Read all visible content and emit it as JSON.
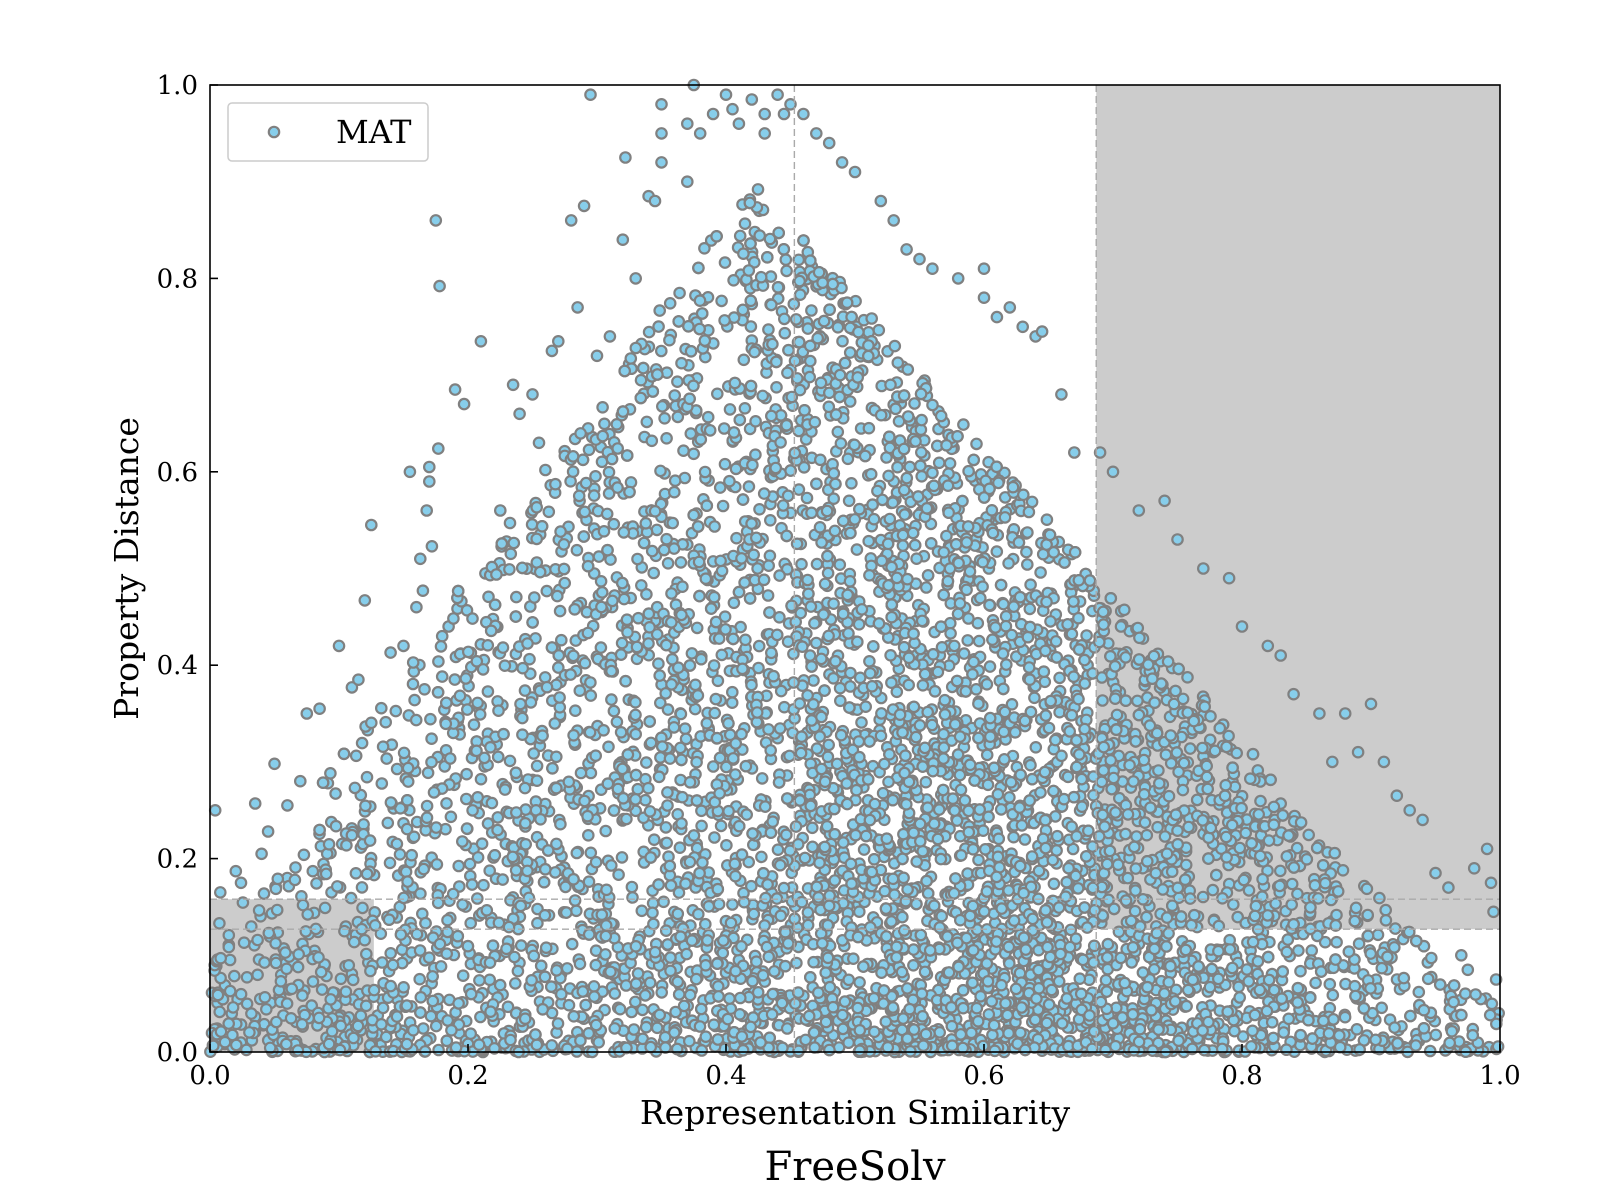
{
  "chart_data": {
    "type": "scatter",
    "title": "",
    "caption": "FreeSolv",
    "xlabel": "Representation Similarity",
    "ylabel": "Property Distance",
    "xlim": [
      0.0,
      1.0
    ],
    "ylim": [
      0.0,
      1.0
    ],
    "xticks": [
      "0.0",
      "0.2",
      "0.4",
      "0.6",
      "0.8",
      "1.0"
    ],
    "yticks": [
      "0.0",
      "0.2",
      "0.4",
      "0.6",
      "0.8",
      "1.0"
    ],
    "grid": false,
    "legend": {
      "placement": "top-left",
      "entries": [
        "MAT"
      ]
    },
    "series": [
      {
        "name": "MAT",
        "marker_fill": "#87CEEB",
        "marker_edge": "#808080",
        "points_note": "dense point cloud; outline points listed, bulk estimated",
        "points": [
          [
            0.004,
            0.25
          ],
          [
            0.008,
            0.165
          ],
          [
            0.02,
            0.187
          ],
          [
            0.024,
            0.175
          ],
          [
            0.035,
            0.257
          ],
          [
            0.04,
            0.205
          ],
          [
            0.045,
            0.228
          ],
          [
            0.05,
            0.298
          ],
          [
            0.06,
            0.255
          ],
          [
            0.07,
            0.28
          ],
          [
            0.075,
            0.35
          ],
          [
            0.085,
            0.355
          ],
          [
            0.1,
            0.42
          ],
          [
            0.11,
            0.377
          ],
          [
            0.115,
            0.385
          ],
          [
            0.12,
            0.467
          ],
          [
            0.125,
            0.545
          ],
          [
            0.14,
            0.413
          ],
          [
            0.15,
            0.42
          ],
          [
            0.155,
            0.6
          ],
          [
            0.16,
            0.46
          ],
          [
            0.163,
            0.51
          ],
          [
            0.165,
            0.477
          ],
          [
            0.168,
            0.56
          ],
          [
            0.17,
            0.605
          ],
          [
            0.17,
            0.59
          ],
          [
            0.172,
            0.523
          ],
          [
            0.175,
            0.86
          ],
          [
            0.177,
            0.624
          ],
          [
            0.178,
            0.792
          ],
          [
            0.18,
            0.43
          ],
          [
            0.185,
            0.44
          ],
          [
            0.19,
            0.685
          ],
          [
            0.197,
            0.67
          ],
          [
            0.21,
            0.735
          ],
          [
            0.225,
            0.56
          ],
          [
            0.235,
            0.69
          ],
          [
            0.24,
            0.66
          ],
          [
            0.25,
            0.68
          ],
          [
            0.255,
            0.63
          ],
          [
            0.265,
            0.725
          ],
          [
            0.27,
            0.735
          ],
          [
            0.28,
            0.86
          ],
          [
            0.285,
            0.77
          ],
          [
            0.29,
            0.875
          ],
          [
            0.295,
            0.99
          ],
          [
            0.3,
            0.72
          ],
          [
            0.31,
            0.74
          ],
          [
            0.32,
            0.84
          ],
          [
            0.322,
            0.925
          ],
          [
            0.33,
            0.8
          ],
          [
            0.34,
            0.885
          ],
          [
            0.345,
            0.88
          ],
          [
            0.35,
            0.92
          ],
          [
            0.35,
            0.95
          ],
          [
            0.35,
            0.98
          ],
          [
            0.37,
            0.9
          ],
          [
            0.37,
            0.96
          ],
          [
            0.375,
            1.0
          ],
          [
            0.38,
            0.95
          ],
          [
            0.39,
            0.97
          ],
          [
            0.4,
            0.99
          ],
          [
            0.405,
            0.975
          ],
          [
            0.41,
            0.96
          ],
          [
            0.42,
            0.985
          ],
          [
            0.43,
            0.97
          ],
          [
            0.43,
            0.95
          ],
          [
            0.44,
            0.99
          ],
          [
            0.445,
            0.97
          ],
          [
            0.45,
            0.98
          ],
          [
            0.46,
            0.97
          ],
          [
            0.47,
            0.95
          ],
          [
            0.48,
            0.94
          ],
          [
            0.49,
            0.92
          ],
          [
            0.5,
            0.91
          ],
          [
            0.52,
            0.88
          ],
          [
            0.53,
            0.86
          ],
          [
            0.54,
            0.83
          ],
          [
            0.55,
            0.82
          ],
          [
            0.56,
            0.81
          ],
          [
            0.58,
            0.8
          ],
          [
            0.6,
            0.81
          ],
          [
            0.6,
            0.78
          ],
          [
            0.61,
            0.76
          ],
          [
            0.62,
            0.77
          ],
          [
            0.63,
            0.75
          ],
          [
            0.64,
            0.74
          ],
          [
            0.645,
            0.745
          ],
          [
            0.66,
            0.68
          ],
          [
            0.67,
            0.62
          ],
          [
            0.69,
            0.62
          ],
          [
            0.7,
            0.6
          ],
          [
            0.72,
            0.56
          ],
          [
            0.74,
            0.57
          ],
          [
            0.75,
            0.53
          ],
          [
            0.77,
            0.5
          ],
          [
            0.79,
            0.49
          ],
          [
            0.8,
            0.44
          ],
          [
            0.82,
            0.42
          ],
          [
            0.83,
            0.41
          ],
          [
            0.84,
            0.37
          ],
          [
            0.86,
            0.35
          ],
          [
            0.87,
            0.3
          ],
          [
            0.88,
            0.35
          ],
          [
            0.89,
            0.31
          ],
          [
            0.9,
            0.36
          ],
          [
            0.91,
            0.3
          ],
          [
            0.92,
            0.265
          ],
          [
            0.93,
            0.25
          ],
          [
            0.94,
            0.24
          ],
          [
            0.95,
            0.185
          ],
          [
            0.96,
            0.17
          ],
          [
            0.97,
            0.1
          ],
          [
            0.975,
            0.085
          ],
          [
            0.98,
            0.19
          ],
          [
            0.99,
            0.21
          ],
          [
            0.993,
            0.175
          ],
          [
            0.995,
            0.145
          ],
          [
            0.997,
            0.075
          ],
          [
            0.999,
            0.04
          ]
        ]
      }
    ],
    "shaded_regions": [
      {
        "x": [
          0.0,
          0.127
        ],
        "y": [
          0.0,
          0.158
        ],
        "color": "#cccccc"
      },
      {
        "x": [
          0.687,
          1.0
        ],
        "y": [
          0.127,
          1.0
        ],
        "color": "#cccccc"
      }
    ],
    "reference_lines": [
      {
        "orientation": "vertical",
        "value": 0.453,
        "style": "dashed"
      },
      {
        "orientation": "vertical",
        "value": 0.687,
        "style": "dashed"
      },
      {
        "orientation": "horizontal",
        "value": 0.158,
        "style": "dashed"
      },
      {
        "orientation": "horizontal",
        "value": 0.127,
        "style": "dashed"
      }
    ]
  }
}
